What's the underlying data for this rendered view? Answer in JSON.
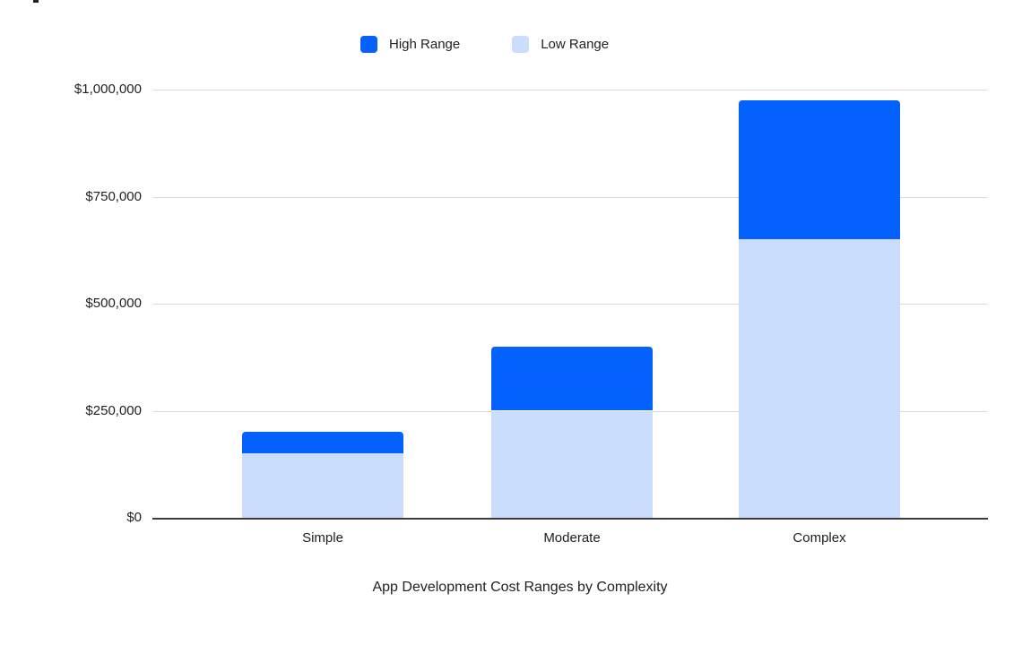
{
  "chart_data": {
    "type": "bar",
    "stacked": true,
    "orientation": "vertical",
    "title": "App Development Cost Ranges by Complexity",
    "title_position": "bottom",
    "categories": [
      "Simple",
      "Moderate",
      "Complex"
    ],
    "series": [
      {
        "name": "Low Range",
        "color": "#cbddfc",
        "values": [
          150000,
          250000,
          650000
        ]
      },
      {
        "name": "High Range",
        "color": "#0561fc",
        "values": [
          50000,
          150000,
          325000
        ],
        "stack_tops": [
          200000,
          400000,
          975000
        ]
      }
    ],
    "ranges": [
      {
        "category": "Simple",
        "low": 150000,
        "high": 200000
      },
      {
        "category": "Moderate",
        "low": 250000,
        "high": 400000
      },
      {
        "category": "Complex",
        "low": 650000,
        "high": 975000
      }
    ],
    "legend": {
      "position": "top-center",
      "entries": [
        {
          "label": "High Range",
          "color": "#0561fc"
        },
        {
          "label": "Low Range",
          "color": "#cbddfc"
        }
      ]
    },
    "y_axis": {
      "range": [
        0,
        1000000
      ],
      "gridlines": true,
      "gridline_color": "#d9d9d9",
      "baseline_color": "#3b3b3b",
      "ticks": [
        {
          "value": 0,
          "label": "$0"
        },
        {
          "value": 250000,
          "label": "$250,000"
        },
        {
          "value": 500000,
          "label": "$500,000"
        },
        {
          "value": 750000,
          "label": "$750,000"
        },
        {
          "value": 1000000,
          "label": "$1,000,000"
        }
      ]
    },
    "x_axis": {
      "labels": [
        "Simple",
        "Moderate",
        "Complex"
      ]
    },
    "text_color": "#1f1f1f",
    "background_color": "#ffffff"
  }
}
